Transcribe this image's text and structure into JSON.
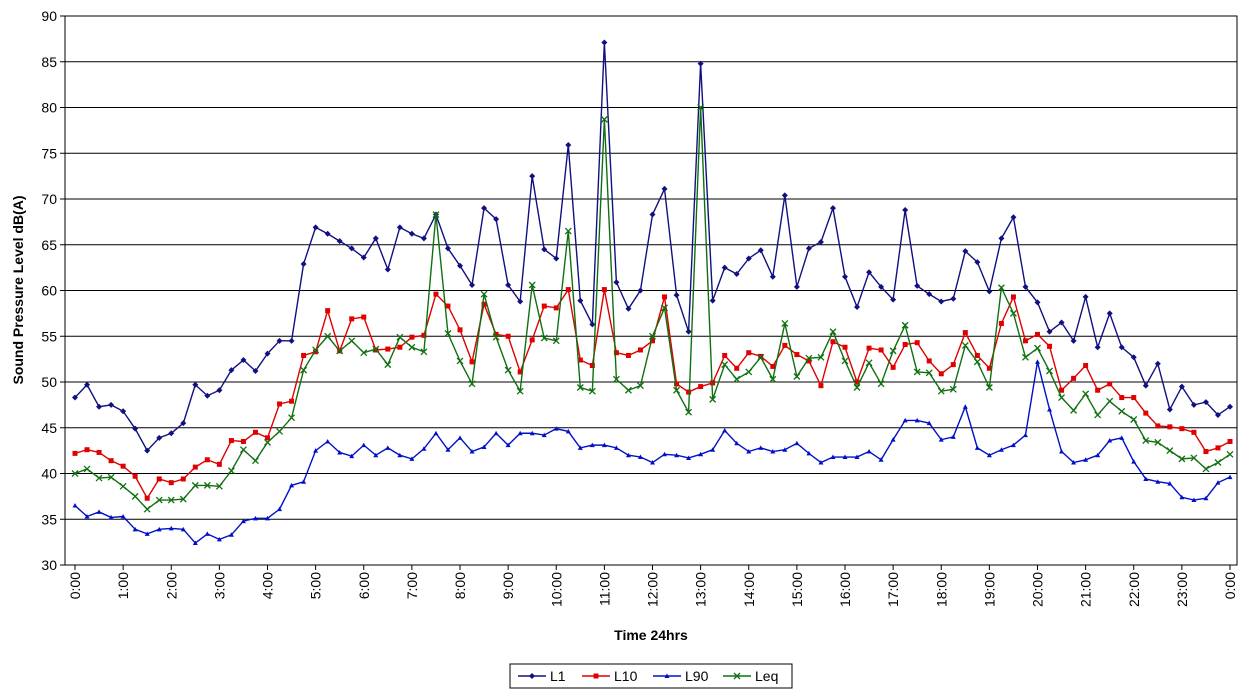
{
  "chart_data": {
    "type": "line",
    "y_label": "Sound Pressure Level dB(A)",
    "x_label": "Time 24hrs",
    "categories": [
      "0:00",
      null,
      null,
      null,
      "1:00",
      null,
      null,
      null,
      "2:00",
      null,
      null,
      null,
      "3:00",
      null,
      null,
      null,
      "4:00",
      null,
      null,
      null,
      "5:00",
      null,
      null,
      null,
      "6:00",
      null,
      null,
      null,
      "7:00",
      null,
      null,
      null,
      "8:00",
      null,
      null,
      null,
      "9:00",
      null,
      null,
      null,
      "10:00",
      null,
      null,
      null,
      "11:00",
      null,
      null,
      null,
      "12:00",
      null,
      null,
      null,
      "13:00",
      null,
      null,
      null,
      "14:00",
      null,
      null,
      null,
      "15:00",
      null,
      null,
      null,
      "16:00",
      null,
      null,
      null,
      "17:00",
      null,
      null,
      null,
      "18:00",
      null,
      null,
      null,
      "19:00",
      null,
      null,
      null,
      "20:00",
      null,
      null,
      null,
      "21:00",
      null,
      null,
      null,
      "22:00",
      null,
      null,
      null,
      "23:00",
      null,
      null,
      null,
      "0:00"
    ],
    "ylim": [
      30,
      90
    ],
    "yticks": [
      30,
      35,
      40,
      45,
      50,
      55,
      60,
      65,
      70,
      75,
      80,
      85,
      90
    ],
    "grid": true,
    "legend": "bottom",
    "series": [
      {
        "name": "L1",
        "color": "#101080",
        "marker": "diamond",
        "values": [
          48.3,
          49.7,
          47.3,
          47.5,
          46.8,
          44.9,
          42.5,
          43.9,
          44.4,
          45.5,
          49.7,
          48.5,
          49.1,
          51.3,
          52.4,
          51.2,
          53.1,
          54.5,
          54.5,
          62.9,
          66.9,
          66.2,
          65.4,
          64.6,
          63.6,
          65.7,
          62.3,
          66.9,
          66.2,
          65.7,
          68.3,
          64.6,
          62.7,
          60.6,
          69.0,
          67.8,
          60.6,
          58.8,
          72.5,
          64.5,
          63.5,
          75.9,
          58.9,
          56.3,
          87.1,
          60.9,
          58.0,
          60.0,
          68.3,
          71.1,
          59.5,
          55.5,
          84.8,
          58.9,
          62.5,
          61.8,
          63.5,
          64.4,
          61.5,
          70.4,
          60.4,
          64.6,
          65.3,
          69.0,
          61.5,
          58.2,
          62.0,
          60.4,
          59.0,
          68.8,
          60.5,
          59.6,
          58.8,
          59.1,
          64.3,
          63.1,
          59.9,
          65.7,
          68.0,
          60.4,
          58.7,
          55.5,
          56.5,
          54.5,
          59.3,
          53.8,
          57.5,
          53.8,
          52.7,
          49.6,
          52.0,
          47.0,
          49.5,
          47.5,
          47.8,
          46.4,
          47.3
        ]
      },
      {
        "name": "L10",
        "color": "#e00000",
        "marker": "square",
        "values": [
          42.2,
          42.6,
          42.3,
          41.4,
          40.8,
          39.7,
          37.3,
          39.4,
          39.0,
          39.4,
          40.7,
          41.5,
          41.0,
          43.6,
          43.5,
          44.5,
          43.9,
          47.6,
          47.9,
          52.9,
          53.3,
          57.8,
          53.4,
          56.9,
          57.1,
          53.5,
          53.6,
          53.8,
          54.9,
          55.1,
          59.6,
          58.3,
          55.7,
          52.2,
          58.5,
          55.2,
          55.0,
          51.1,
          54.6,
          58.3,
          58.1,
          60.1,
          52.4,
          51.8,
          60.1,
          53.2,
          52.9,
          53.5,
          54.5,
          59.3,
          49.8,
          48.9,
          49.5,
          49.9,
          52.9,
          51.5,
          53.2,
          52.8,
          51.7,
          54.0,
          53.0,
          52.3,
          49.6,
          54.4,
          53.8,
          50.0,
          53.7,
          53.5,
          51.6,
          54.1,
          54.3,
          52.3,
          50.9,
          51.9,
          55.4,
          52.9,
          51.5,
          56.4,
          59.3,
          54.5,
          55.2,
          53.9,
          49.1,
          50.4,
          51.8,
          49.1,
          49.8,
          48.3,
          48.3,
          46.6,
          45.2,
          45.1,
          44.9,
          44.5,
          42.4,
          42.8,
          43.5
        ]
      },
      {
        "name": "L90",
        "color": "#0010c8",
        "marker": "triangle",
        "values": [
          36.5,
          35.3,
          35.8,
          35.2,
          35.3,
          33.9,
          33.4,
          33.9,
          34.0,
          33.9,
          32.4,
          33.4,
          32.8,
          33.3,
          34.8,
          35.1,
          35.1,
          36.1,
          38.7,
          39.1,
          42.5,
          43.5,
          42.3,
          41.9,
          43.1,
          42.0,
          42.8,
          42.0,
          41.6,
          42.7,
          44.4,
          42.6,
          43.9,
          42.4,
          42.9,
          44.4,
          43.1,
          44.4,
          44.4,
          44.2,
          44.9,
          44.6,
          42.8,
          43.1,
          43.1,
          42.8,
          42.0,
          41.8,
          41.2,
          42.1,
          42.0,
          41.7,
          42.1,
          42.6,
          44.7,
          43.3,
          42.4,
          42.8,
          42.4,
          42.6,
          43.3,
          42.2,
          41.2,
          41.8,
          41.8,
          41.8,
          42.4,
          41.5,
          43.7,
          45.8,
          45.8,
          45.5,
          43.7,
          44.0,
          47.3,
          42.8,
          42.0,
          42.6,
          43.1,
          44.2,
          52.2,
          47.0,
          42.4,
          41.2,
          41.5,
          42.0,
          43.6,
          43.9,
          41.3,
          39.4,
          39.1,
          38.9,
          37.4,
          37.1,
          37.3,
          39.0,
          39.6
        ]
      },
      {
        "name": "Leq",
        "color": "#107010",
        "marker": "x",
        "values": [
          40.0,
          40.5,
          39.5,
          39.6,
          38.6,
          37.5,
          36.1,
          37.1,
          37.1,
          37.2,
          38.7,
          38.7,
          38.6,
          40.3,
          42.6,
          41.4,
          43.4,
          44.6,
          46.1,
          51.3,
          53.5,
          55.0,
          53.4,
          54.5,
          53.2,
          53.6,
          51.9,
          54.9,
          53.8,
          53.3,
          68.3,
          55.3,
          52.3,
          49.8,
          59.6,
          54.9,
          51.3,
          49.0,
          60.6,
          54.8,
          54.5,
          66.5,
          49.4,
          49.0,
          78.7,
          50.3,
          49.1,
          49.6,
          55.0,
          58.1,
          49.1,
          46.7,
          80.0,
          48.1,
          51.9,
          50.3,
          51.1,
          52.7,
          50.3,
          56.4,
          50.6,
          52.6,
          52.7,
          55.5,
          52.3,
          49.4,
          52.1,
          49.8,
          53.4,
          56.2,
          51.1,
          51.0,
          49.0,
          49.2,
          54.0,
          52.2,
          49.4,
          60.3,
          57.5,
          52.7,
          53.7,
          51.2,
          48.3,
          46.9,
          48.7,
          46.4,
          47.9,
          46.8,
          45.9,
          43.6,
          43.4,
          42.5,
          41.6,
          41.7,
          40.5,
          41.2,
          42.1
        ]
      }
    ]
  }
}
